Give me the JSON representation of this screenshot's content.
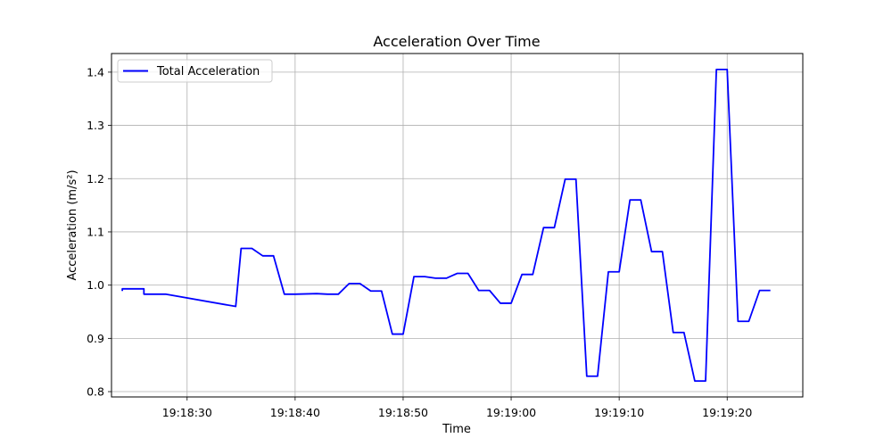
{
  "chart_data": {
    "type": "line",
    "title": "Acceleration Over Time",
    "xlabel": "Time",
    "ylabel": "Acceleration (m/s²)",
    "xlim": [
      "19:18:23",
      "19:19:27"
    ],
    "ylim": [
      0.79,
      1.435
    ],
    "x_ticks": [
      "19:18:30",
      "19:18:40",
      "19:18:50",
      "19:19:00",
      "19:19:10",
      "19:19:20"
    ],
    "y_ticks": [
      0.8,
      0.9,
      1.0,
      1.1,
      1.2,
      1.3,
      1.4
    ],
    "y_tick_labels": [
      "0.8",
      "0.9",
      "1.0",
      "1.1",
      "1.2",
      "1.3",
      "1.4"
    ],
    "grid": true,
    "legend_position": "top-left",
    "series": [
      {
        "name": "Total Acceleration",
        "color": "#0000ff",
        "x": [
          "19:18:24",
          "19:18:24",
          "19:18:26",
          "19:18:26",
          "19:18:28",
          "19:18:34.5",
          "19:18:35",
          "19:18:36",
          "19:18:37",
          "19:18:38",
          "19:18:39",
          "19:18:40",
          "19:18:42",
          "19:18:43",
          "19:18:44",
          "19:18:45",
          "19:18:46",
          "19:18:47",
          "19:18:48",
          "19:18:49",
          "19:18:50",
          "19:18:51",
          "19:18:52",
          "19:18:53",
          "19:18:54",
          "19:18:55",
          "19:18:56",
          "19:18:57",
          "19:18:58",
          "19:18:59",
          "19:19:00",
          "19:19:01",
          "19:19:02",
          "19:19:03",
          "19:19:04",
          "19:19:05",
          "19:19:06",
          "19:19:07",
          "19:19:08",
          "19:19:09",
          "19:19:10",
          "19:19:11",
          "19:19:12",
          "19:19:13",
          "19:19:14",
          "19:19:15",
          "19:19:16",
          "19:19:17",
          "19:19:18",
          "19:19:19",
          "19:19:20",
          "19:19:21",
          "19:19:22",
          "19:19:23",
          "19:19:24"
        ],
        "values": [
          0.989,
          0.993,
          0.993,
          0.983,
          0.983,
          0.96,
          1.069,
          1.069,
          1.055,
          1.055,
          0.983,
          0.983,
          0.984,
          0.983,
          0.983,
          1.003,
          1.003,
          0.989,
          0.989,
          0.908,
          0.908,
          1.016,
          1.016,
          1.013,
          1.013,
          1.022,
          1.022,
          0.99,
          0.99,
          0.966,
          0.966,
          1.02,
          1.02,
          1.108,
          1.108,
          1.199,
          1.199,
          0.829,
          0.829,
          1.025,
          1.025,
          1.16,
          1.16,
          1.063,
          1.063,
          0.911,
          0.911,
          0.82,
          0.82,
          1.405,
          1.405,
          0.932,
          0.932,
          0.99,
          0.99
        ]
      }
    ]
  }
}
